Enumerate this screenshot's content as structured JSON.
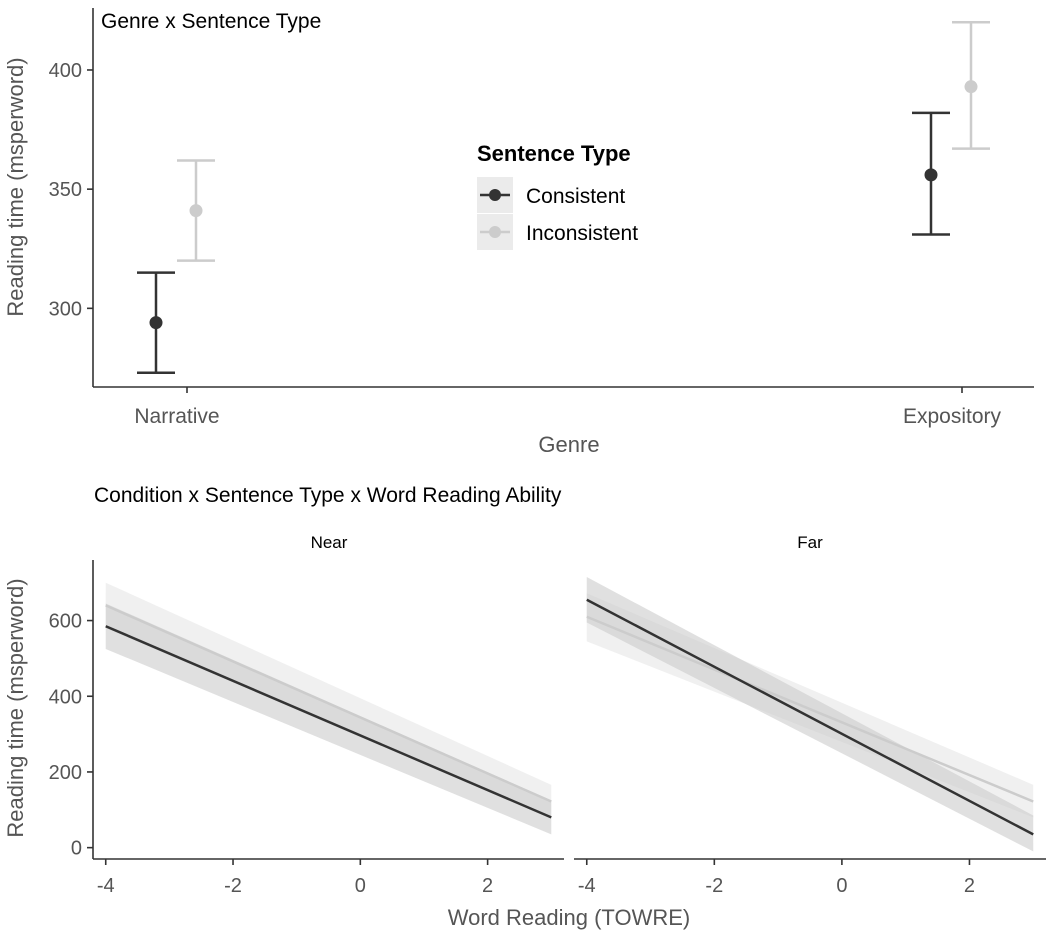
{
  "colors": {
    "consistent": "#333333",
    "inconsistent": "#cccccc",
    "axis": "#333333",
    "text": "#000000",
    "tick_label": "#555555",
    "band_consistent": "#cccccc",
    "band_inconsistent": "#e6e6e6"
  },
  "chart_data": [
    {
      "type": "scatter",
      "variant": "point-with-errorbars",
      "title": "Genre x Sentence Type",
      "xlabel": "Genre",
      "ylabel": "Reading time (msperword)",
      "categories": [
        "Narrative",
        "Expository"
      ],
      "ylim": [
        267,
        426
      ],
      "yticks": [
        300,
        350,
        400
      ],
      "grid": false,
      "legend": {
        "title": "Sentence Type",
        "entries": [
          "Consistent",
          "Inconsistent"
        ],
        "placement": "center"
      },
      "series": [
        {
          "name": "Consistent",
          "values": [
            294,
            356
          ],
          "lower": [
            273,
            331
          ],
          "upper": [
            315,
            382
          ]
        },
        {
          "name": "Inconsistent",
          "values": [
            341,
            393
          ],
          "lower": [
            320,
            367
          ],
          "upper": [
            362,
            420
          ]
        }
      ]
    },
    {
      "type": "line",
      "variant": "regression-lines-with-ci-bands",
      "title": "Condition x Sentence Type x Word Reading Ability",
      "xlabel": "Word Reading (TOWRE)",
      "ylabel": "Reading time (msperword)",
      "xlim": [
        -4.2,
        3.2
      ],
      "ylim": [
        -30,
        760
      ],
      "xticks": [
        -4,
        -2,
        0,
        2
      ],
      "yticks": [
        0,
        200,
        400,
        600
      ],
      "grid": false,
      "panels": [
        {
          "label": "Near",
          "series": [
            {
              "name": "Consistent",
              "x": [
                -4,
                3
              ],
              "y": [
                585,
                80
              ],
              "lower": [
                525,
                35
              ],
              "upper": [
                645,
                125
              ]
            },
            {
              "name": "Inconsistent",
              "x": [
                -4,
                3
              ],
              "y": [
                640,
                122
              ],
              "lower": [
                580,
                78
              ],
              "upper": [
                700,
                166
              ]
            }
          ]
        },
        {
          "label": "Far",
          "series": [
            {
              "name": "Consistent",
              "x": [
                -4,
                3
              ],
              "y": [
                655,
                35
              ],
              "lower": [
                595,
                -10
              ],
              "upper": [
                715,
                85
              ]
            },
            {
              "name": "Inconsistent",
              "x": [
                -4,
                3
              ],
              "y": [
                610,
                122
              ],
              "lower": [
                545,
                80
              ],
              "upper": [
                672,
                166
              ]
            }
          ]
        }
      ]
    }
  ]
}
